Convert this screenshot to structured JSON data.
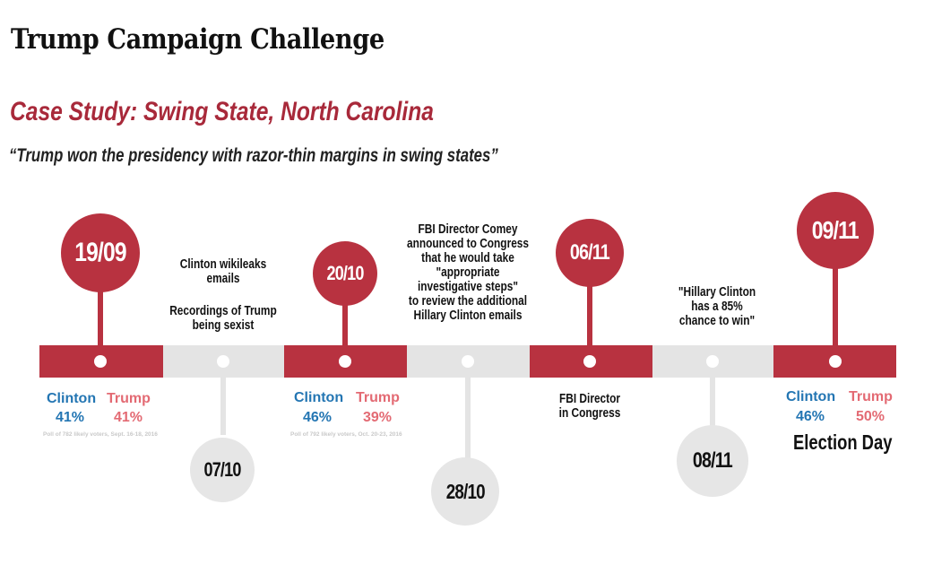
{
  "header": {
    "title": "Trump Campaign Challenge",
    "subtitle": "Case Study: Swing State, North Carolina",
    "quote": "“Trump won the presidency with razor-thin margins in swing states”"
  },
  "events": [
    {
      "date": "19/09",
      "clinton_label": "Clinton",
      "trump_label": "Trump",
      "clinton_pct": "41%",
      "trump_pct": "41%",
      "source": "Poll of 782 likely voters, Sept. 16-18, 2016"
    },
    {
      "date": "07/10",
      "note_lines": [
        "Clinton wikileaks",
        "emails",
        "",
        "Recordings of Trump",
        "being sexist"
      ]
    },
    {
      "date": "20/10",
      "clinton_label": "Clinton",
      "trump_label": "Trump",
      "clinton_pct": "46%",
      "trump_pct": "39%",
      "source": "Poll of 792 likely voters, Oct. 20-23, 2016"
    },
    {
      "date": "28/10",
      "note_lines": [
        "FBI Director Comey",
        "announced to Congress",
        "that he would take",
        "\"appropriate",
        "investigative steps\"",
        "to review the additional",
        "Hillary Clinton emails"
      ]
    },
    {
      "date": "06/11",
      "note_lines": [
        "FBI Director",
        "in Congress"
      ]
    },
    {
      "date": "08/11",
      "note_lines": [
        "\"Hillary Clinton",
        "has a 85%",
        "chance to win\""
      ]
    },
    {
      "date": "09/11",
      "clinton_label": "Clinton",
      "trump_label": "Trump",
      "clinton_pct": "46%",
      "trump_pct": "50%",
      "caption": "Election Day"
    }
  ],
  "colors": {
    "red": "#b83240",
    "gray": "#e4e4e4",
    "clinton_blue": "#2476b3",
    "trump_pink": "#e36a73"
  }
}
